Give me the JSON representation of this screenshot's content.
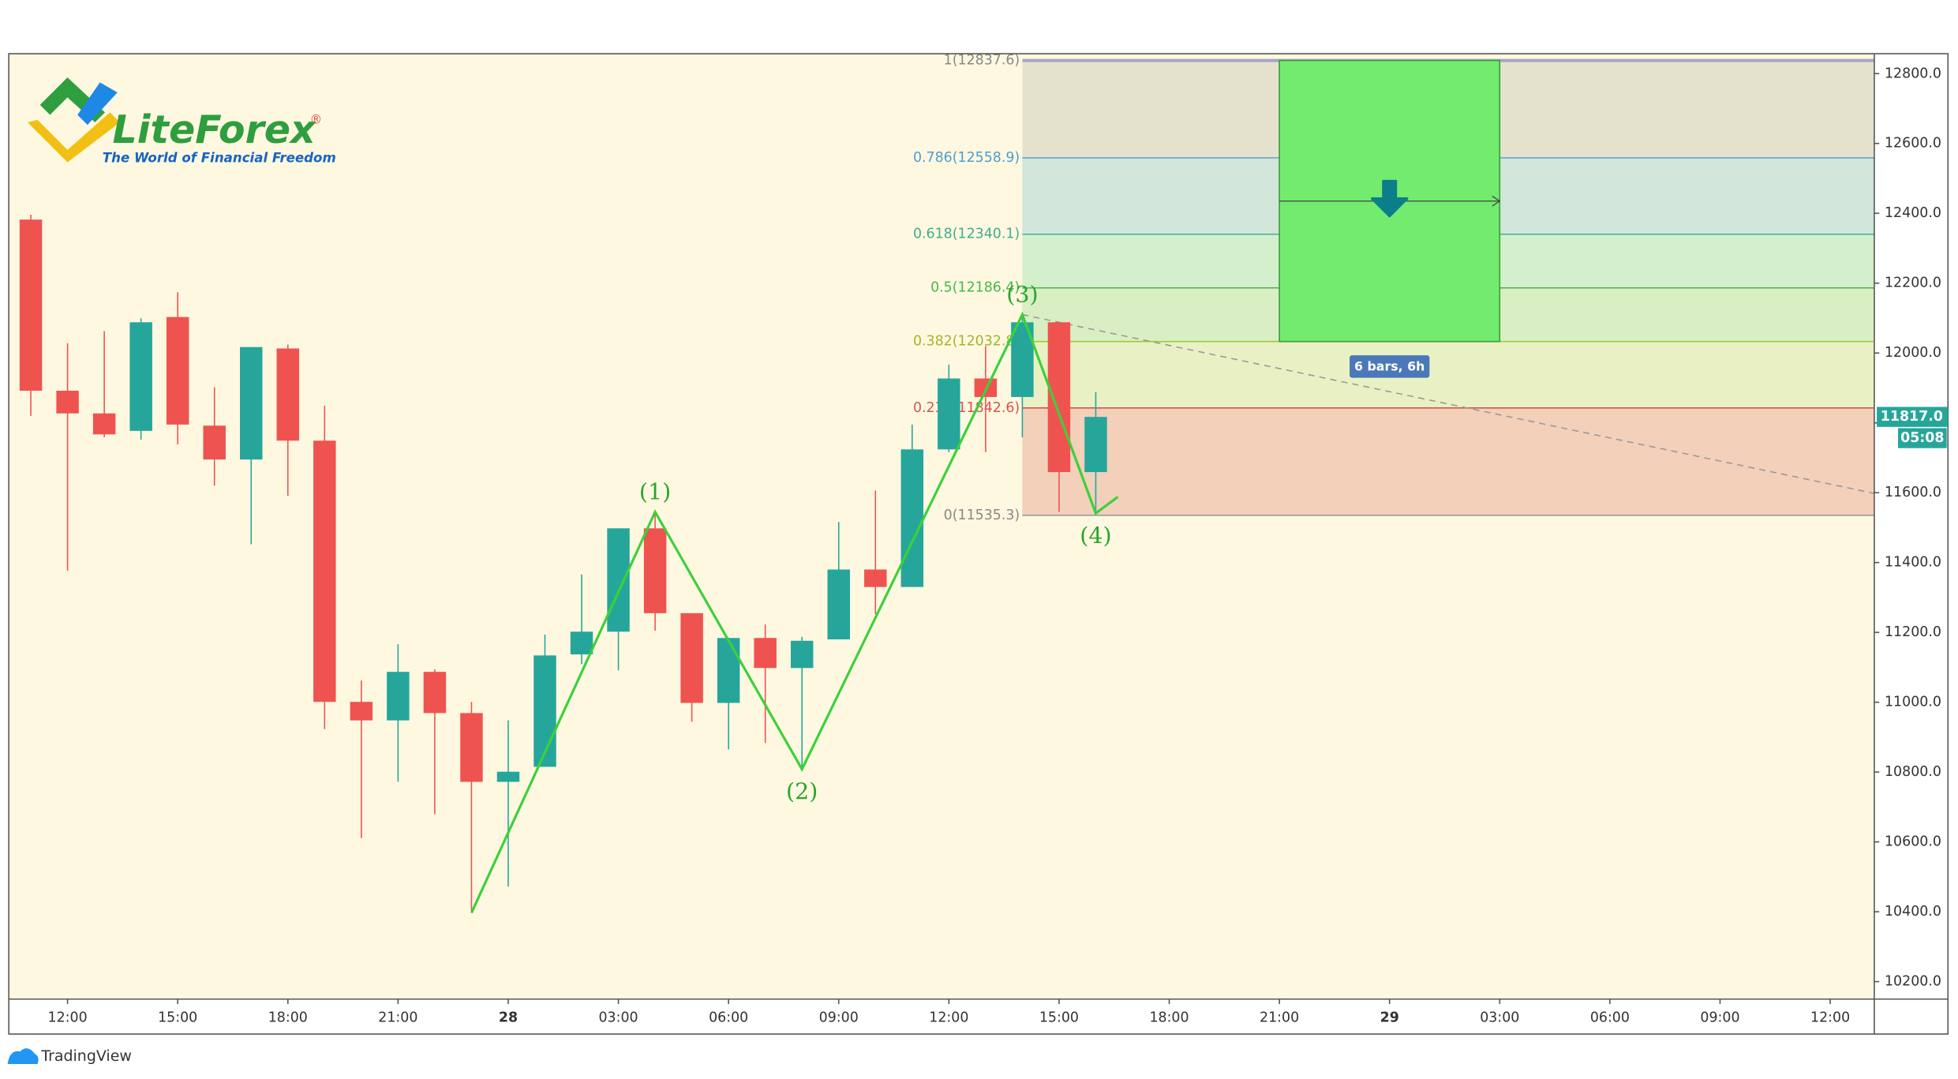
{
  "logo": {
    "name": "LiteForex",
    "mark": "®",
    "tagline": "The World of Financial Freedom"
  },
  "footer": "TradingView",
  "chart_data": {
    "type": "candlestick",
    "xlim": [
      -13.6,
      37.2
    ],
    "ylim": [
      10150,
      12857
    ],
    "xticks": [
      {
        "value": -12,
        "label": "12:00"
      },
      {
        "value": -9,
        "label": "15:00"
      },
      {
        "value": -6,
        "label": "18:00"
      },
      {
        "value": -3,
        "label": "21:00"
      },
      {
        "value": 0,
        "label": "28"
      },
      {
        "value": 3,
        "label": "03:00"
      },
      {
        "value": 6,
        "label": "06:00"
      },
      {
        "value": 9,
        "label": "09:00"
      },
      {
        "value": 12,
        "label": "12:00"
      },
      {
        "value": 15,
        "label": "15:00"
      },
      {
        "value": 18,
        "label": "18:00"
      },
      {
        "value": 21,
        "label": "21:00"
      },
      {
        "value": 24,
        "label": "29"
      },
      {
        "value": 27,
        "label": "03:00"
      },
      {
        "value": 30,
        "label": "06:00"
      },
      {
        "value": 33,
        "label": "09:00"
      },
      {
        "value": 36,
        "label": "12:00"
      }
    ],
    "yticks": [
      {
        "value": 12800,
        "label": "12800.0"
      },
      {
        "value": 12600,
        "label": "12600.0"
      },
      {
        "value": 12400,
        "label": "12400.0"
      },
      {
        "value": 12200,
        "label": "12200.0"
      },
      {
        "value": 12000,
        "label": "12000.0"
      },
      {
        "value": 11800,
        "label": "11800.0"
      },
      {
        "value": 11600,
        "label": "11600.0"
      },
      {
        "value": 11400,
        "label": "11400.0"
      },
      {
        "value": 11200,
        "label": "11200.0"
      },
      {
        "value": 11000,
        "label": "11000.0"
      },
      {
        "value": 10800,
        "label": "10800.0"
      },
      {
        "value": 10600,
        "label": "10600.0"
      },
      {
        "value": 10400,
        "label": "10400.0"
      },
      {
        "value": 10200,
        "label": "10200.0"
      }
    ],
    "up_color": "#26a69a",
    "down_color": "#ef5350",
    "x": [
      -13,
      -12,
      -11,
      -10,
      -9,
      -8,
      -7,
      -6,
      -5,
      -4,
      -3,
      -2,
      -1,
      0,
      1,
      2,
      3,
      4,
      5,
      6,
      7,
      8,
      9,
      10,
      11,
      12,
      13,
      14,
      15,
      16
    ],
    "open": [
      12382,
      11892,
      11827,
      11777,
      12103,
      11792,
      11695,
      12013,
      11749,
      11001,
      10948,
      11087,
      10969,
      10772,
      10815,
      11137,
      11202,
      11498,
      11255,
      10998,
      11184,
      11098,
      11180,
      11380,
      11330,
      11724,
      11927,
      11874,
      12088,
      11659
    ],
    "high": [
      12396,
      12028,
      12063,
      12099,
      12174,
      11902,
      12017,
      12024,
      11849,
      11062,
      11166,
      11094,
      11001,
      10948,
      11194,
      11366,
      11498,
      11545,
      11255,
      11184,
      11223,
      11187,
      11516,
      11606,
      11795,
      11967,
      12020,
      12110,
      12088,
      11888
    ],
    "low": [
      11820,
      11377,
      11759,
      11752,
      11738,
      11620,
      11452,
      11591,
      10923,
      10611,
      10772,
      10679,
      10397,
      10472,
      10815,
      11109,
      11091,
      11205,
      10944,
      10865,
      10883,
      10808,
      11180,
      11252,
      11330,
      11716,
      11716,
      11759,
      11545,
      11545
    ],
    "close": [
      11892,
      11827,
      11767,
      12088,
      11795,
      11695,
      12017,
      11749,
      11001,
      10948,
      11087,
      10969,
      10772,
      10801,
      11134,
      11202,
      11498,
      11255,
      10998,
      11184,
      11098,
      11176,
      11380,
      11330,
      11724,
      11927,
      11874,
      12088,
      11659,
      11817
    ],
    "fib": {
      "x_start": 14,
      "levels": [
        {
          "label": "1(12837.6)",
          "value": 12837.6,
          "color": "#a9a4c4",
          "text_color": "#888888",
          "fill": "#e4e2cc"
        },
        {
          "label": "0.786(12558.9)",
          "value": 12558.9,
          "color": "#5fa8d3",
          "text_color": "#4a9fcf",
          "fill": "#d1e5d9"
        },
        {
          "label": "0.618(12340.1)",
          "value": 12340.1,
          "color": "#3cb39a",
          "text_color": "#3fae8e",
          "fill": "#d3efcb"
        },
        {
          "label": "0.5(12186.4)",
          "value": 12186.4,
          "color": "#4caf50",
          "text_color": "#45b94a",
          "fill": "#d9efc3"
        },
        {
          "label": "0.382(12032.8)",
          "value": 12032.8,
          "color": "#9ccc3a",
          "text_color": "#a4b52a",
          "fill": "#e9f1c4"
        },
        {
          "label": "0.236(11842.6)",
          "value": 11842.6,
          "color": "#d9534f",
          "text_color": "#d9534f",
          "fill": "#f3d0ba"
        },
        {
          "label": "0(11535.3)",
          "value": 11535.3,
          "color": "#999999",
          "text_color": "#888888"
        }
      ]
    },
    "projection": {
      "x": [
        21,
        27
      ],
      "top": 12837.6,
      "bottom": 12032.8,
      "arrow_value": 12435,
      "label": "6 bars, 6h",
      "fill": "#72eb6e",
      "color": "#3a9a3a",
      "icon_color": "#0b7e8a",
      "label_color": "#4a78b8"
    },
    "trend": {
      "x": [
        14,
        37.2
      ],
      "values": [
        12110,
        11598
      ],
      "color": "#999999"
    },
    "wave": {
      "x": [
        -1,
        4,
        8,
        14,
        16,
        16.6
      ],
      "values": [
        10397,
        11545,
        10808,
        12110,
        11541,
        11588
      ],
      "color": "#3ad13a",
      "point_labels": [
        null,
        "(1)",
        "(2)",
        "(3)",
        "(4)",
        null
      ],
      "text_color": "#2aa52a"
    },
    "current_price": {
      "value": 11817,
      "label": "11817.0",
      "countdown": "05:08",
      "color": "#26a69a"
    }
  }
}
